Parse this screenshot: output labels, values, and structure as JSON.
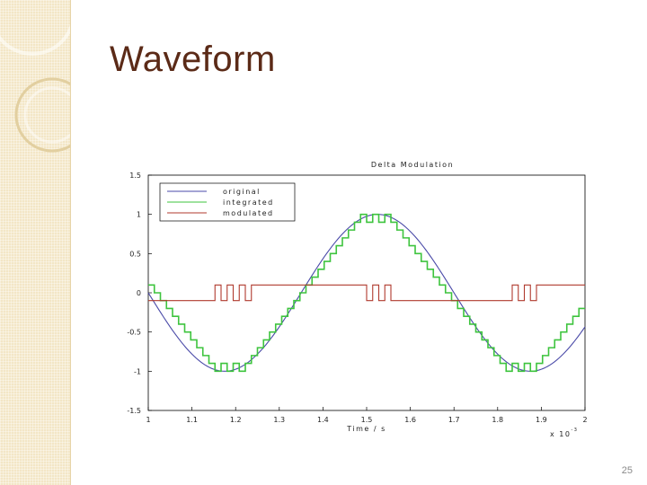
{
  "slide": {
    "title": "Waveform",
    "page_number": "25"
  },
  "colors": {
    "original": "#4a4aa8",
    "integrated": "#3ec43e",
    "modulated": "#b03a2e",
    "title": "#5b2a17",
    "sidebar": "#f3e6c6"
  },
  "chart_data": {
    "type": "line",
    "title": "Delta Modulation",
    "xlabel": "Time / s",
    "ylabel": "",
    "x_multiplier_label": "x 10",
    "x_multiplier_exponent": "-3",
    "xlim": [
      1,
      2
    ],
    "ylim": [
      -1.5,
      1.5
    ],
    "x_ticks": [
      1,
      1.1,
      1.2,
      1.3,
      1.4,
      1.5,
      1.6,
      1.7,
      1.8,
      1.9,
      2
    ],
    "x_tick_labels": [
      "1",
      "1.1",
      "1.2",
      "1.3",
      "1.4",
      "1.5",
      "1.6",
      "1.7",
      "1.8",
      "1.9",
      "2"
    ],
    "y_ticks": [
      1.5,
      1,
      0.5,
      0,
      -0.5,
      -1,
      -1.5
    ],
    "y_tick_labels": [
      "1.5",
      "1",
      "0.5",
      "0",
      "-0.5",
      "-1",
      "-1.5"
    ],
    "legend_position": "top-left",
    "grid": false,
    "series": [
      {
        "name": "original",
        "note_formula": "sin",
        "x": [
          1.0,
          1.05,
          1.1,
          1.15,
          1.2,
          1.25,
          1.3,
          1.35,
          1.4,
          1.45,
          1.5,
          1.55,
          1.6,
          1.65,
          1.7,
          1.75,
          1.8,
          1.85,
          1.9,
          1.95,
          2.0
        ],
        "values": [
          0.0,
          -0.59,
          -0.95,
          -0.95,
          -0.59,
          0.0,
          0.59,
          0.95,
          0.95,
          0.59,
          0.0,
          -0.59,
          -0.95,
          -0.95,
          -0.59,
          0.0,
          0.59,
          0.95,
          0.95,
          0.59,
          0.0
        ]
      },
      {
        "name": "integrated",
        "values": [
          0.1,
          0.0,
          -0.1,
          -0.2,
          -0.3,
          -0.4,
          -0.5,
          -0.6,
          -0.7,
          -0.8,
          -0.9,
          -1.0,
          -0.9,
          -1.0,
          -0.9,
          -1.0,
          -0.9,
          -0.8,
          -0.7,
          -0.6,
          -0.5,
          -0.4,
          -0.3,
          -0.2,
          -0.1,
          0.0,
          0.1,
          0.2,
          0.3,
          0.4,
          0.5,
          0.6,
          0.7,
          0.8,
          0.9,
          1.0,
          0.9,
          1.0,
          0.9,
          1.0,
          0.9,
          0.8,
          0.7,
          0.6,
          0.5,
          0.4,
          0.3,
          0.2,
          0.1,
          0.0,
          -0.1,
          -0.2,
          -0.3,
          -0.4,
          -0.5,
          -0.6,
          -0.7,
          -0.8,
          -0.9,
          -1.0,
          -0.9,
          -1.0,
          -0.9,
          -1.0,
          -0.9,
          -0.8,
          -0.7,
          -0.6,
          -0.5,
          -0.4,
          -0.3,
          -0.2
        ]
      },
      {
        "name": "modulated",
        "values": [
          -0.1,
          -0.1,
          -0.1,
          -0.1,
          -0.1,
          -0.1,
          -0.1,
          -0.1,
          -0.1,
          -0.1,
          -0.1,
          0.1,
          -0.1,
          0.1,
          -0.1,
          0.1,
          -0.1,
          0.1,
          0.1,
          0.1,
          0.1,
          0.1,
          0.1,
          0.1,
          0.1,
          0.1,
          0.1,
          0.1,
          0.1,
          0.1,
          0.1,
          0.1,
          0.1,
          0.1,
          0.1,
          0.1,
          -0.1,
          0.1,
          -0.1,
          0.1,
          -0.1,
          -0.1,
          -0.1,
          -0.1,
          -0.1,
          -0.1,
          -0.1,
          -0.1,
          -0.1,
          -0.1,
          -0.1,
          -0.1,
          -0.1,
          -0.1,
          -0.1,
          -0.1,
          -0.1,
          -0.1,
          -0.1,
          -0.1,
          0.1,
          -0.1,
          0.1,
          -0.1,
          0.1,
          0.1,
          0.1,
          0.1,
          0.1,
          0.1,
          0.1,
          0.1
        ]
      }
    ]
  }
}
